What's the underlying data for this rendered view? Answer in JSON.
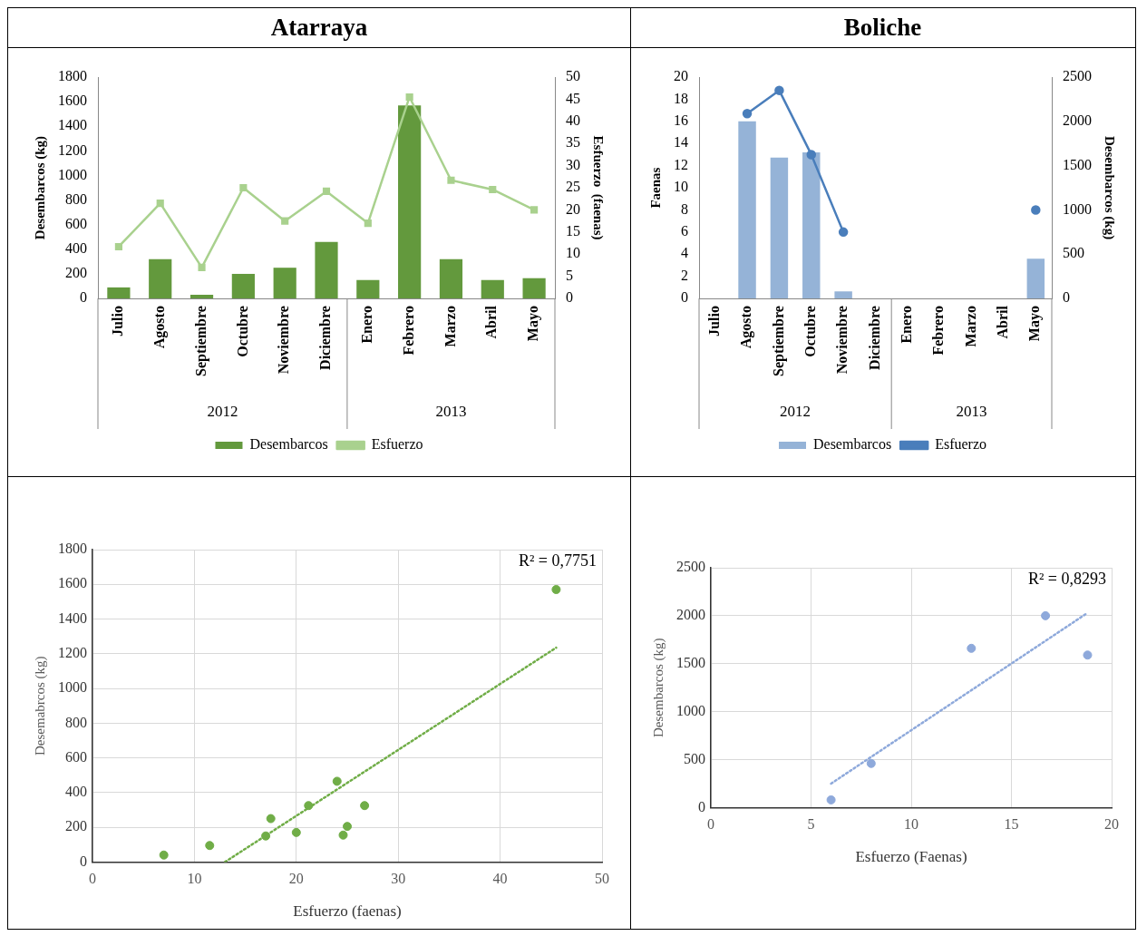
{
  "chart_data": [
    {
      "type": "bar",
      "title": "Atarraya",
      "ylabel": "Desembarcos (kg)",
      "y2label": "Esfuerzo  (faenas)",
      "categories": [
        "Julio",
        "Agosto",
        "Septiembre",
        "Octubre",
        "Noviembre",
        "Diciembre",
        "Enero",
        "Febrero",
        "Marzo",
        "Abril",
        "Mayo"
      ],
      "series": [
        {
          "name": "Desembarcos",
          "type": "bar",
          "color": "#63993d",
          "values": [
            90,
            320,
            30,
            200,
            250,
            460,
            150,
            1570,
            320,
            150,
            165
          ]
        },
        {
          "name": "Esfuerzo",
          "type": "line",
          "axis": "y2",
          "color": "#a9d18e",
          "marker": "square",
          "values": [
            11.7,
            21.5,
            7,
            25,
            17.5,
            24.2,
            17,
            45.5,
            26.7,
            24.6,
            20
          ]
        }
      ],
      "ylim": [
        0,
        1800
      ],
      "yticks": [
        0,
        200,
        400,
        600,
        800,
        1000,
        1200,
        1400,
        1600,
        1800
      ],
      "y2lim": [
        0,
        50
      ],
      "y2ticks": [
        0,
        5,
        10,
        15,
        20,
        25,
        30,
        35,
        40,
        45,
        50
      ],
      "annotations": [
        "2012",
        "2013"
      ],
      "grid": false,
      "legend": "bottom"
    },
    {
      "type": "bar",
      "title": "Boliche",
      "ylabel": "Faenas",
      "y2label": "Desembarcos (kg)",
      "categories": [
        "Julio",
        "Agosto",
        "Septiembre",
        "Octubre",
        "Noviembre",
        "Diciembre",
        "Enero",
        "Febrero",
        "Marzo",
        "Abril",
        "Mayo"
      ],
      "series": [
        {
          "name": "Desembarcos",
          "type": "bar",
          "axis": "y2",
          "color": "#95b3d7",
          "values": [
            null,
            2000,
            1590,
            1650,
            80,
            null,
            null,
            null,
            null,
            null,
            450
          ]
        },
        {
          "name": "Esfuerzo",
          "type": "line",
          "color": "#4a7ebb",
          "marker": "circle",
          "values": [
            null,
            16.7,
            18.8,
            13,
            6,
            null,
            null,
            null,
            null,
            null,
            8
          ]
        }
      ],
      "ylim": [
        0,
        20
      ],
      "yticks": [
        0,
        2,
        4,
        6,
        8,
        10,
        12,
        14,
        16,
        18,
        20
      ],
      "y2lim": [
        0,
        2500
      ],
      "y2ticks": [
        0,
        500,
        1000,
        1500,
        2000,
        2500
      ],
      "annotations": [
        "2012",
        "2013"
      ],
      "grid": false,
      "legend": "bottom"
    },
    {
      "type": "scatter",
      "xlabel": "Esfuerzo (faenas)",
      "ylabel": "Desemabrcos (kg)",
      "marker": "circle",
      "series": [
        {
          "type": "scatter",
          "color": "#70ad47",
          "x": [
            7,
            11.5,
            17,
            17.5,
            20,
            21.2,
            24,
            24.6,
            25,
            26.7,
            45.5
          ],
          "values": [
            40,
            95,
            150,
            250,
            170,
            325,
            465,
            155,
            205,
            325,
            1570
          ]
        },
        {
          "type": "line",
          "line_style": "dotted",
          "color": "#70ad47",
          "marker": "none",
          "x": [
            13,
            45.5
          ],
          "values": [
            0,
            1235
          ]
        }
      ],
      "xlim": [
        0,
        50
      ],
      "xticks": [
        0,
        10,
        20,
        30,
        40,
        50
      ],
      "ylim": [
        0,
        1800
      ],
      "yticks": [
        0,
        200,
        400,
        600,
        800,
        1000,
        1200,
        1400,
        1600,
        1800
      ],
      "annotations": [
        "R² = 0,7751"
      ],
      "grid": true,
      "legend": false
    },
    {
      "type": "scatter",
      "xlabel": "Esfuerzo (Faenas)",
      "ylabel": "Desembarcos (kg)",
      "marker": "circle",
      "series": [
        {
          "type": "scatter",
          "color": "#8ea9db",
          "x": [
            6,
            8,
            13,
            16.7,
            18.8
          ],
          "values": [
            80,
            460,
            1660,
            2000,
            1590
          ]
        },
        {
          "type": "line",
          "line_style": "dotted",
          "color": "#8ea9db",
          "marker": "none",
          "x": [
            6,
            18.8
          ],
          "values": [
            250,
            2030
          ]
        }
      ],
      "xlim": [
        0,
        20
      ],
      "xticks": [
        0,
        5,
        10,
        15,
        20
      ],
      "ylim": [
        0,
        2500
      ],
      "yticks": [
        0,
        500,
        1000,
        1500,
        2000,
        2500
      ],
      "annotations": [
        "R² = 0,8293"
      ],
      "grid": true,
      "legend": false
    }
  ]
}
